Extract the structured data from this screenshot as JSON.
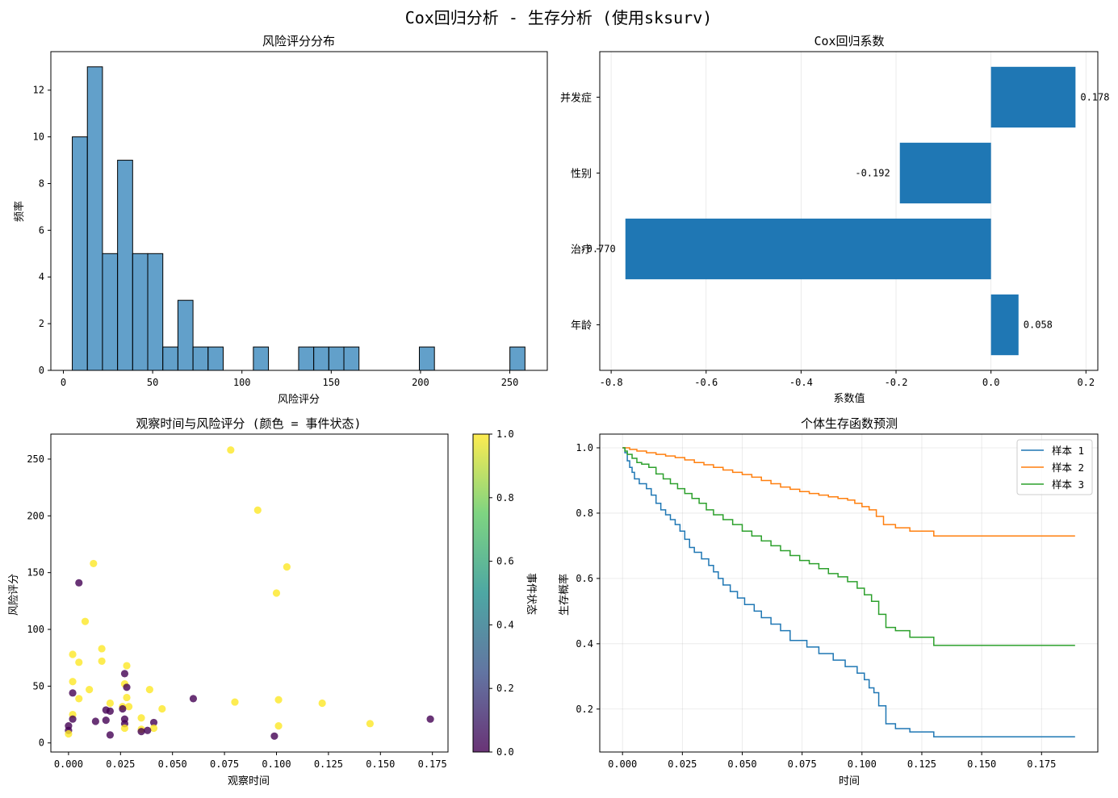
{
  "figure": {
    "suptitle": "Cox回归分析 - 生存分析 (使用sksurv)"
  },
  "chart_data": [
    {
      "type": "bar",
      "subtype": "histogram",
      "title": "风险评分分布",
      "xlabel": "风险评分",
      "ylabel": "频率",
      "xlim": [
        -7,
        271
      ],
      "ylim": [
        0,
        13.65
      ],
      "xticks": [
        0,
        50,
        100,
        150,
        200,
        250
      ],
      "yticks": [
        0,
        2,
        4,
        6,
        8,
        10,
        12
      ],
      "bin_edges": [
        5.0,
        13.45,
        21.9,
        30.35,
        38.8,
        47.25,
        55.7,
        64.15,
        72.6,
        81.05,
        89.5,
        97.95,
        106.4,
        114.85,
        123.3,
        131.75,
        140.2,
        148.65,
        157.1,
        165.55,
        174.0,
        182.45,
        190.9,
        199.35,
        207.8,
        216.25,
        224.7,
        233.15,
        241.6,
        250.05,
        258.5
      ],
      "values": [
        10,
        13,
        5,
        9,
        5,
        5,
        1,
        3,
        1,
        1,
        0,
        0,
        1,
        0,
        0,
        1,
        1,
        1,
        1,
        0,
        0,
        0,
        0,
        1,
        0,
        0,
        0,
        0,
        0,
        1
      ],
      "color": "#1f77b4",
      "grid": false
    },
    {
      "type": "bar",
      "orientation": "horizontal",
      "title": "Cox回归系数",
      "xlabel": "系数值",
      "ylabel": "",
      "categories": [
        "年龄",
        "治疗",
        "性别",
        "并发症"
      ],
      "values": [
        0.058,
        -0.77,
        -0.192,
        0.178
      ],
      "data_labels": [
        "0.058",
        "-0.770",
        "-0.192",
        "0.178"
      ],
      "xlim": [
        -0.824,
        0.225
      ],
      "xticks": [
        -0.8,
        -0.6,
        -0.4,
        -0.2,
        0.0,
        0.2
      ],
      "xtick_labels": [
        "-0.8",
        "-0.6",
        "-0.4",
        "-0.2",
        "0.0",
        "0.2"
      ],
      "color": "#1f77b4",
      "grid": "x"
    },
    {
      "type": "scatter",
      "title": "观察时间与风险评分 (颜色 = 事件状态)",
      "xlabel": "观察时间",
      "ylabel": "风险评分",
      "xlim": [
        -0.0085,
        0.1825
      ],
      "ylim": [
        -8,
        272
      ],
      "xticks": [
        0.0,
        0.025,
        0.05,
        0.075,
        0.1,
        0.125,
        0.15,
        0.175
      ],
      "xtick_labels": [
        "0.000",
        "0.025",
        "0.050",
        "0.075",
        "0.100",
        "0.125",
        "0.150",
        "0.175"
      ],
      "yticks": [
        0,
        50,
        100,
        150,
        200,
        250
      ],
      "colormap": "viridis",
      "alpha": 0.8,
      "colorbar": {
        "label": "事件状态",
        "ticks": [
          0.0,
          0.2,
          0.4,
          0.6,
          0.8,
          1.0
        ],
        "tick_labels": [
          "0.0",
          "0.2",
          "0.4",
          "0.6",
          "0.8",
          "1.0"
        ]
      },
      "points": [
        {
          "x": 0.078,
          "y": 258,
          "event": 1
        },
        {
          "x": 0.091,
          "y": 205,
          "event": 1
        },
        {
          "x": 0.105,
          "y": 155,
          "event": 1
        },
        {
          "x": 0.1,
          "y": 132,
          "event": 1
        },
        {
          "x": 0.012,
          "y": 158,
          "event": 1
        },
        {
          "x": 0.005,
          "y": 141,
          "event": 0
        },
        {
          "x": 0.008,
          "y": 107,
          "event": 1
        },
        {
          "x": 0.002,
          "y": 78,
          "event": 1
        },
        {
          "x": 0.005,
          "y": 71,
          "event": 1
        },
        {
          "x": 0.016,
          "y": 83,
          "event": 1
        },
        {
          "x": 0.016,
          "y": 72,
          "event": 1
        },
        {
          "x": 0.028,
          "y": 68,
          "event": 1
        },
        {
          "x": 0.027,
          "y": 61,
          "event": 0
        },
        {
          "x": 0.002,
          "y": 54,
          "event": 1
        },
        {
          "x": 0.027,
          "y": 52,
          "event": 1
        },
        {
          "x": 0.028,
          "y": 49,
          "event": 0
        },
        {
          "x": 0.039,
          "y": 47,
          "event": 1
        },
        {
          "x": 0.01,
          "y": 47,
          "event": 1
        },
        {
          "x": 0.002,
          "y": 44,
          "event": 0
        },
        {
          "x": 0.005,
          "y": 39,
          "event": 1
        },
        {
          "x": 0.028,
          "y": 40,
          "event": 1
        },
        {
          "x": 0.06,
          "y": 39,
          "event": 0
        },
        {
          "x": 0.08,
          "y": 36,
          "event": 1
        },
        {
          "x": 0.101,
          "y": 38,
          "event": 1
        },
        {
          "x": 0.122,
          "y": 35,
          "event": 1
        },
        {
          "x": 0.02,
          "y": 35,
          "event": 1
        },
        {
          "x": 0.026,
          "y": 32,
          "event": 1
        },
        {
          "x": 0.029,
          "y": 32,
          "event": 1
        },
        {
          "x": 0.026,
          "y": 30,
          "event": 0
        },
        {
          "x": 0.045,
          "y": 30,
          "event": 1
        },
        {
          "x": 0.018,
          "y": 29,
          "event": 0
        },
        {
          "x": 0.02,
          "y": 28,
          "event": 0
        },
        {
          "x": 0.002,
          "y": 25,
          "event": 1
        },
        {
          "x": 0.035,
          "y": 22,
          "event": 1
        },
        {
          "x": 0.002,
          "y": 21,
          "event": 0
        },
        {
          "x": 0.013,
          "y": 19,
          "event": 0
        },
        {
          "x": 0.018,
          "y": 20,
          "event": 0
        },
        {
          "x": 0.027,
          "y": 21,
          "event": 0
        },
        {
          "x": 0.027,
          "y": 17,
          "event": 0
        },
        {
          "x": 0.041,
          "y": 18,
          "event": 0
        },
        {
          "x": 0.145,
          "y": 17,
          "event": 1
        },
        {
          "x": 0.101,
          "y": 15,
          "event": 1
        },
        {
          "x": 0.174,
          "y": 21,
          "event": 0
        },
        {
          "x": 0.0,
          "y": 15,
          "event": 0
        },
        {
          "x": 0.027,
          "y": 13,
          "event": 1
        },
        {
          "x": 0.035,
          "y": 12,
          "event": 1
        },
        {
          "x": 0.041,
          "y": 13,
          "event": 1
        },
        {
          "x": 0.035,
          "y": 10,
          "event": 0
        },
        {
          "x": 0.038,
          "y": 11,
          "event": 0
        },
        {
          "x": 0.0,
          "y": 11,
          "event": 0
        },
        {
          "x": 0.0,
          "y": 8,
          "event": 1
        },
        {
          "x": 0.02,
          "y": 7,
          "event": 0
        },
        {
          "x": 0.099,
          "y": 6,
          "event": 0
        }
      ],
      "grid": false
    },
    {
      "type": "line",
      "subtype": "step",
      "title": "个体生存函数预测",
      "xlabel": "时间",
      "ylabel": "生存概率",
      "xlim": [
        -0.0095,
        0.1985
      ],
      "ylim": [
        0.0685,
        1.042
      ],
      "xticks": [
        0.0,
        0.025,
        0.05,
        0.075,
        0.1,
        0.125,
        0.15,
        0.175
      ],
      "xtick_labels": [
        "0.000",
        "0.025",
        "0.050",
        "0.075",
        "0.100",
        "0.125",
        "0.150",
        "0.175"
      ],
      "yticks": [
        0.2,
        0.4,
        0.6,
        0.8,
        1.0
      ],
      "ytick_labels": [
        "0.2",
        "0.4",
        "0.6",
        "0.8",
        "1.0"
      ],
      "grid": true,
      "legend": "top-right",
      "x_end": 0.189,
      "series": [
        {
          "name": "样本 1",
          "color": "#1f77b4",
          "points": [
            [
              0,
              1.0
            ],
            [
              0.001,
              0.985
            ],
            [
              0.002,
              0.96
            ],
            [
              0.003,
              0.94
            ],
            [
              0.004,
              0.925
            ],
            [
              0.005,
              0.905
            ],
            [
              0.007,
              0.89
            ],
            [
              0.01,
              0.875
            ],
            [
              0.012,
              0.855
            ],
            [
              0.014,
              0.83
            ],
            [
              0.016,
              0.81
            ],
            [
              0.018,
              0.795
            ],
            [
              0.02,
              0.78
            ],
            [
              0.022,
              0.765
            ],
            [
              0.024,
              0.745
            ],
            [
              0.026,
              0.72
            ],
            [
              0.028,
              0.695
            ],
            [
              0.03,
              0.68
            ],
            [
              0.033,
              0.66
            ],
            [
              0.036,
              0.64
            ],
            [
              0.038,
              0.62
            ],
            [
              0.04,
              0.6
            ],
            [
              0.042,
              0.58
            ],
            [
              0.045,
              0.56
            ],
            [
              0.048,
              0.54
            ],
            [
              0.051,
              0.52
            ],
            [
              0.055,
              0.5
            ],
            [
              0.058,
              0.48
            ],
            [
              0.062,
              0.46
            ],
            [
              0.066,
              0.44
            ],
            [
              0.07,
              0.41
            ],
            [
              0.077,
              0.39
            ],
            [
              0.082,
              0.37
            ],
            [
              0.088,
              0.35
            ],
            [
              0.093,
              0.33
            ],
            [
              0.098,
              0.31
            ],
            [
              0.101,
              0.29
            ],
            [
              0.103,
              0.265
            ],
            [
              0.105,
              0.25
            ],
            [
              0.107,
              0.21
            ],
            [
              0.11,
              0.155
            ],
            [
              0.114,
              0.14
            ],
            [
              0.12,
              0.13
            ],
            [
              0.13,
              0.115
            ]
          ]
        },
        {
          "name": "样本 2",
          "color": "#ff7f0e",
          "points": [
            [
              0,
              1.0
            ],
            [
              0.003,
              0.995
            ],
            [
              0.006,
              0.99
            ],
            [
              0.01,
              0.985
            ],
            [
              0.014,
              0.98
            ],
            [
              0.018,
              0.975
            ],
            [
              0.022,
              0.97
            ],
            [
              0.026,
              0.963
            ],
            [
              0.03,
              0.955
            ],
            [
              0.034,
              0.948
            ],
            [
              0.038,
              0.94
            ],
            [
              0.042,
              0.932
            ],
            [
              0.046,
              0.925
            ],
            [
              0.05,
              0.918
            ],
            [
              0.054,
              0.91
            ],
            [
              0.058,
              0.9
            ],
            [
              0.062,
              0.89
            ],
            [
              0.066,
              0.88
            ],
            [
              0.07,
              0.873
            ],
            [
              0.074,
              0.866
            ],
            [
              0.078,
              0.86
            ],
            [
              0.082,
              0.855
            ],
            [
              0.086,
              0.85
            ],
            [
              0.09,
              0.845
            ],
            [
              0.094,
              0.84
            ],
            [
              0.097,
              0.83
            ],
            [
              0.1,
              0.82
            ],
            [
              0.103,
              0.81
            ],
            [
              0.106,
              0.79
            ],
            [
              0.109,
              0.765
            ],
            [
              0.114,
              0.755
            ],
            [
              0.12,
              0.745
            ],
            [
              0.13,
              0.73
            ]
          ]
        },
        {
          "name": "样本 3",
          "color": "#2ca02c",
          "points": [
            [
              0,
              1.0
            ],
            [
              0.001,
              0.99
            ],
            [
              0.002,
              0.98
            ],
            [
              0.004,
              0.968
            ],
            [
              0.006,
              0.955
            ],
            [
              0.008,
              0.95
            ],
            [
              0.011,
              0.94
            ],
            [
              0.014,
              0.92
            ],
            [
              0.017,
              0.905
            ],
            [
              0.02,
              0.89
            ],
            [
              0.023,
              0.875
            ],
            [
              0.026,
              0.86
            ],
            [
              0.029,
              0.845
            ],
            [
              0.032,
              0.83
            ],
            [
              0.035,
              0.81
            ],
            [
              0.038,
              0.795
            ],
            [
              0.042,
              0.78
            ],
            [
              0.046,
              0.765
            ],
            [
              0.05,
              0.745
            ],
            [
              0.054,
              0.73
            ],
            [
              0.058,
              0.715
            ],
            [
              0.062,
              0.7
            ],
            [
              0.066,
              0.685
            ],
            [
              0.07,
              0.67
            ],
            [
              0.074,
              0.655
            ],
            [
              0.078,
              0.645
            ],
            [
              0.082,
              0.63
            ],
            [
              0.086,
              0.615
            ],
            [
              0.09,
              0.605
            ],
            [
              0.094,
              0.59
            ],
            [
              0.098,
              0.57
            ],
            [
              0.101,
              0.55
            ],
            [
              0.104,
              0.53
            ],
            [
              0.107,
              0.49
            ],
            [
              0.11,
              0.45
            ],
            [
              0.114,
              0.44
            ],
            [
              0.12,
              0.42
            ],
            [
              0.13,
              0.395
            ]
          ]
        }
      ]
    }
  ]
}
